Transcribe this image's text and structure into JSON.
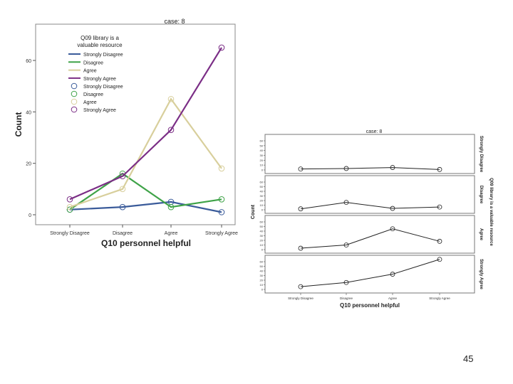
{
  "slide_number": "45",
  "chart_data": [
    {
      "type": "line",
      "title": "case: 8",
      "xlabel": "Q10 personnel helpful",
      "ylabel": "Count",
      "categories": [
        "Strongly Disagree",
        "Disagree",
        "Agree",
        "Strongly Agree"
      ],
      "yticks": [
        0,
        20,
        40,
        60
      ],
      "ylim": [
        0,
        70
      ],
      "legend": {
        "title_lines": [
          "Q09 library  is a",
          "valuable resource"
        ],
        "placement": "top-left",
        "line_items": [
          "Strongly Disagree",
          "Disagree",
          "Agree",
          "Strongly Agree"
        ],
        "marker_items": [
          "Strongly Disagree",
          "Disagree",
          "Agree",
          "Strongly Agree"
        ]
      },
      "series": [
        {
          "name": "Strongly Disagree",
          "values": [
            2,
            3,
            5,
            1
          ],
          "color": "#3a5b9a"
        },
        {
          "name": "Disagree",
          "values": [
            2,
            16,
            3,
            6
          ],
          "color": "#3fa348"
        },
        {
          "name": "Agree",
          "values": [
            3,
            10,
            45,
            18
          ],
          "color": "#d8cf9c"
        },
        {
          "name": "Strongly Agree",
          "values": [
            6,
            15,
            33,
            65
          ],
          "color": "#7b2e86"
        }
      ]
    },
    {
      "type": "line",
      "title": "case: 8",
      "xlabel": "Q10 personnel helpful",
      "ylabel": "Count",
      "facet_label": "Q09 library  is a valuable resource",
      "categories": [
        "Strongly Disagree",
        "Disagree",
        "Agree",
        "Strongly Agree"
      ],
      "yticks": [
        "0",
        "10",
        "20",
        "30",
        "40",
        "50",
        "60"
      ],
      "ylim": [
        0,
        65
      ],
      "panels": [
        {
          "label": "Strongly Disagree",
          "values": [
            2,
            3,
            5,
            1
          ]
        },
        {
          "label": "Disagree",
          "values": [
            2,
            16,
            3,
            6
          ]
        },
        {
          "label": "Agree",
          "values": [
            3,
            10,
            45,
            18
          ]
        },
        {
          "label": "Strongly Agree",
          "values": [
            6,
            15,
            33,
            65
          ]
        }
      ]
    }
  ]
}
